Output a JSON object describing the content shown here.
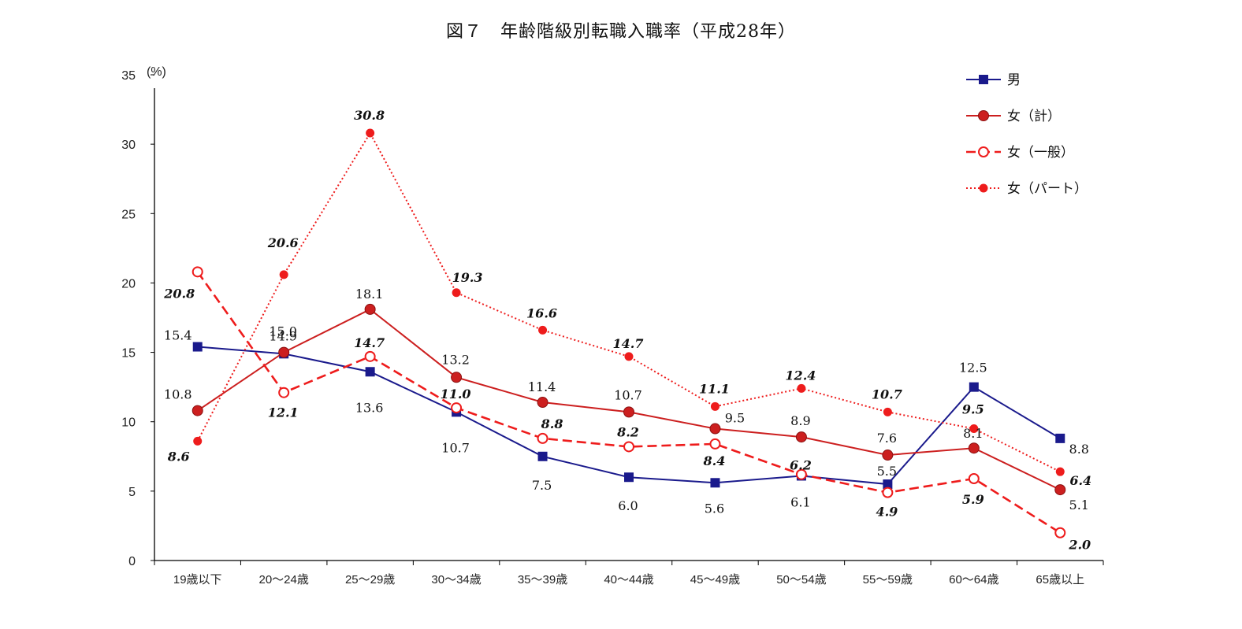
{
  "chart_data": {
    "type": "line",
    "title": "図７　年齢階級別転職入職率（平成28年）",
    "ylabel": "(%)",
    "ylim": [
      0,
      35
    ],
    "yticks": [
      0,
      5,
      10,
      15,
      20,
      25,
      30,
      35
    ],
    "categories": [
      "19歳以下",
      "20～24歳",
      "25～29歳",
      "30～34歳",
      "35～39歳",
      "40～44歳",
      "45～49歳",
      "50～54歳",
      "55～59歳",
      "60～64歳",
      "65歳以上"
    ],
    "legend_position": "top-right",
    "series": [
      {
        "name": "男",
        "color": "#1a1a8c",
        "style": "solid",
        "marker": "square",
        "values": [
          15.4,
          14.9,
          13.6,
          10.7,
          7.5,
          6.0,
          5.6,
          6.1,
          5.5,
          12.5,
          8.8
        ],
        "labels": [
          "15.4",
          "14.9",
          "13.6",
          "10.7",
          "7.5",
          "6.0",
          "5.6",
          "6.1",
          "5.5",
          "12.5",
          "8.8"
        ]
      },
      {
        "name": "女（計）",
        "color": "#cc1f1f",
        "style": "solid",
        "marker": "circle",
        "values": [
          10.8,
          15.0,
          18.1,
          13.2,
          11.4,
          10.7,
          9.5,
          8.9,
          7.6,
          8.1,
          5.1
        ],
        "labels": [
          "10.8",
          "15.0",
          "18.1",
          "13.2",
          "11.4",
          "10.7",
          "9.5",
          "8.9",
          "7.6",
          "8.1",
          "5.1"
        ]
      },
      {
        "name": "女（一般）",
        "color": "#ee1c1c",
        "style": "dashed",
        "marker": "open-circle",
        "values": [
          20.8,
          12.1,
          14.7,
          11.0,
          8.8,
          8.2,
          8.4,
          6.2,
          4.9,
          5.9,
          2.0
        ],
        "labels": [
          "20.8",
          "12.1",
          "14.7",
          "11.0",
          "8.8",
          "8.2",
          "8.4",
          "6.2",
          "4.9",
          "5.9",
          "2.0"
        ]
      },
      {
        "name": "女（パート）",
        "color": "#ee1c1c",
        "style": "dotted",
        "marker": "dot",
        "values": [
          8.6,
          20.6,
          30.8,
          19.3,
          16.6,
          14.7,
          11.1,
          12.4,
          10.7,
          9.5,
          6.4
        ],
        "labels": [
          "8.6",
          "20.6",
          "30.8",
          "19.3",
          "16.6",
          "14.7",
          "11.1",
          "12.4",
          "10.7",
          "9.5",
          "6.4"
        ]
      }
    ]
  }
}
